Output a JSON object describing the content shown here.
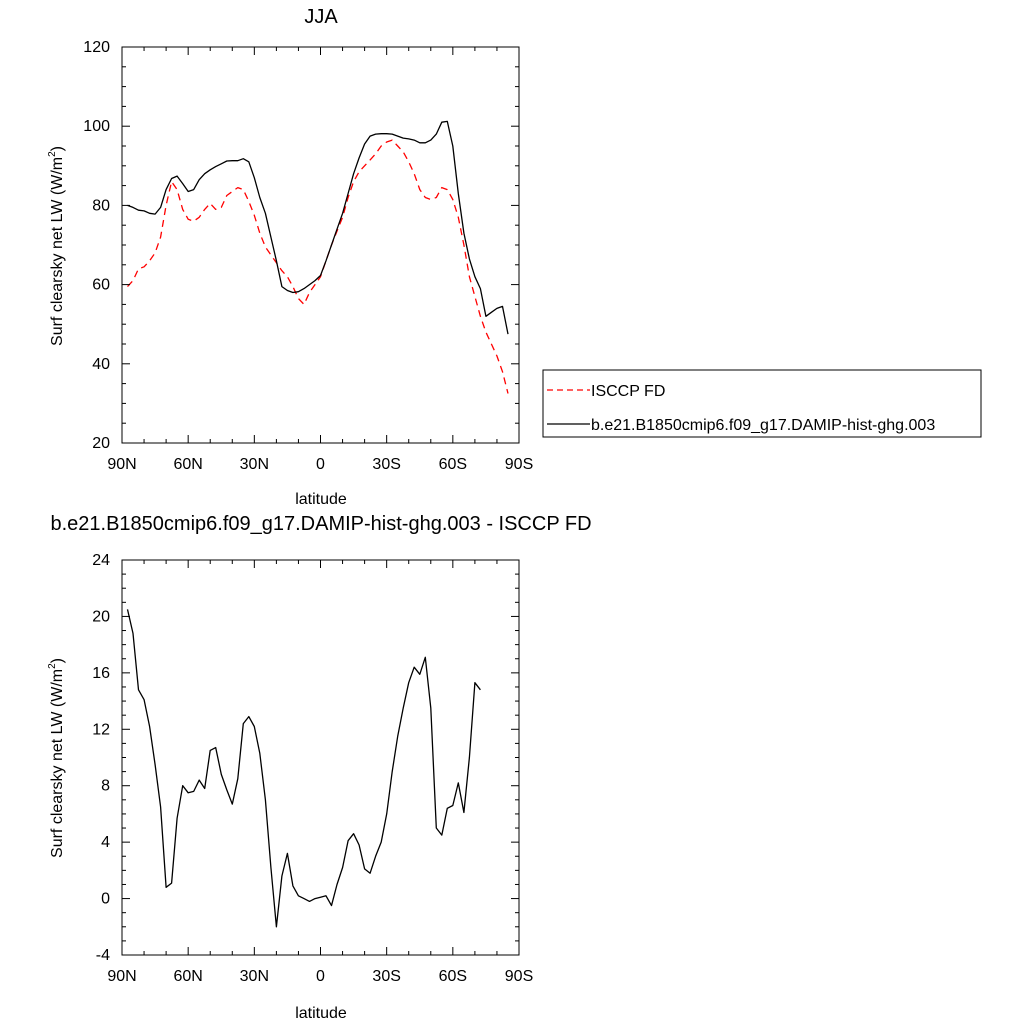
{
  "chart_data": [
    {
      "type": "line",
      "title": "JJA",
      "xlabel": "latitude",
      "ylabel": "Surf clearsky net LW (W/m",
      "ylabel_sup": "2",
      "ylabel_close": ")",
      "xlim": [
        90,
        -90
      ],
      "ylim": [
        20,
        120
      ],
      "x_ticks": [
        90,
        60,
        30,
        0,
        -30,
        -60,
        -90
      ],
      "x_tick_labels": [
        "90N",
        "60N",
        "30N",
        "0",
        "30S",
        "60S",
        "90S"
      ],
      "y_ticks": [
        20,
        40,
        60,
        80,
        100,
        120
      ],
      "y_tick_labels": [
        "20",
        "40",
        "60",
        "80",
        "100",
        "120"
      ],
      "grid": false,
      "legend_position": "right",
      "series": [
        {
          "name": "ISCCP FD",
          "color": "#ff0000",
          "dash": "dashed",
          "points": [
            [
              87.5,
              59.5
            ],
            [
              85,
              61
            ],
            [
              82.5,
              64
            ],
            [
              80,
              64.5
            ],
            [
              77.5,
              66
            ],
            [
              75,
              68
            ],
            [
              72.5,
              72
            ],
            [
              70,
              80
            ],
            [
              67.5,
              86
            ],
            [
              65,
              84
            ],
            [
              62.5,
              79
            ],
            [
              60,
              76.5
            ],
            [
              57.5,
              76
            ],
            [
              55,
              77
            ],
            [
              52.5,
              79
            ],
            [
              50,
              80.5
            ],
            [
              47.5,
              79
            ],
            [
              45,
              79.5
            ],
            [
              42.5,
              82.5
            ],
            [
              40,
              83.5
            ],
            [
              37.5,
              84.5
            ],
            [
              35,
              84
            ],
            [
              32.5,
              81
            ],
            [
              30,
              77.5
            ],
            [
              27.5,
              73
            ],
            [
              25,
              69.5
            ],
            [
              22.5,
              67.5
            ],
            [
              20,
              65.5
            ],
            [
              17.5,
              63.5
            ],
            [
              15,
              62
            ],
            [
              12.5,
              59.5
            ],
            [
              10,
              56.5
            ],
            [
              7.5,
              55
            ],
            [
              5,
              58
            ],
            [
              2.5,
              60
            ],
            [
              0,
              62
            ],
            [
              -2.5,
              66
            ],
            [
              -5,
              70
            ],
            [
              -7.5,
              73.5
            ],
            [
              -10,
              77
            ],
            [
              -12.5,
              82
            ],
            [
              -15,
              86
            ],
            [
              -17.5,
              88.5
            ],
            [
              -20,
              90
            ],
            [
              -22.5,
              91.5
            ],
            [
              -25,
              93
            ],
            [
              -27.5,
              95
            ],
            [
              -30,
              96
            ],
            [
              -32.5,
              96.5
            ],
            [
              -35,
              95
            ],
            [
              -37.5,
              93.5
            ],
            [
              -40,
              91
            ],
            [
              -42.5,
              88
            ],
            [
              -45,
              84
            ],
            [
              -47.5,
              82
            ],
            [
              -50,
              81.5
            ],
            [
              -52.5,
              82
            ],
            [
              -55,
              84.5
            ],
            [
              -57.5,
              84
            ],
            [
              -60,
              81.5
            ],
            [
              -62.5,
              77
            ],
            [
              -65,
              70
            ],
            [
              -67.5,
              62
            ],
            [
              -70,
              57
            ],
            [
              -72.5,
              52
            ],
            [
              -75,
              48
            ],
            [
              -77.5,
              45
            ],
            [
              -80,
              42
            ],
            [
              -82.5,
              38
            ],
            [
              -85,
              32.5
            ]
          ]
        },
        {
          "name": "b.e21.B1850cmip6.f09_g17.DAMIP-hist-ghg.003",
          "color": "#000000",
          "dash": "solid",
          "points": [
            [
              87.5,
              80
            ],
            [
              85,
              79.5
            ],
            [
              82.5,
              78.8
            ],
            [
              80,
              78.6
            ],
            [
              77.5,
              78
            ],
            [
              75,
              77.8
            ],
            [
              72.5,
              79.5
            ],
            [
              70,
              84
            ],
            [
              67.5,
              86.8
            ],
            [
              65,
              87.4
            ],
            [
              62.5,
              85.5
            ],
            [
              60,
              83.5
            ],
            [
              57.5,
              84
            ],
            [
              55,
              86.5
            ],
            [
              52.5,
              88
            ],
            [
              50,
              89
            ],
            [
              47.5,
              89.8
            ],
            [
              45,
              90.5
            ],
            [
              42.5,
              91.2
            ],
            [
              40,
              91.3
            ],
            [
              37.5,
              91.3
            ],
            [
              35,
              91.8
            ],
            [
              32.5,
              91
            ],
            [
              30,
              87
            ],
            [
              27.5,
              82
            ],
            [
              25,
              78
            ],
            [
              22.5,
              72
            ],
            [
              20,
              66
            ],
            [
              17.5,
              59.5
            ],
            [
              15,
              58.5
            ],
            [
              12.5,
              58
            ],
            [
              10,
              58.2
            ],
            [
              7.5,
              59
            ],
            [
              5,
              60
            ],
            [
              2.5,
              61
            ],
            [
              0,
              62.3
            ],
            [
              -2.5,
              66
            ],
            [
              -5,
              70
            ],
            [
              -7.5,
              74
            ],
            [
              -10,
              78
            ],
            [
              -12.5,
              83
            ],
            [
              -15,
              88
            ],
            [
              -17.5,
              92
            ],
            [
              -20,
              95.5
            ],
            [
              -22.5,
              97.5
            ],
            [
              -25,
              98
            ],
            [
              -27.5,
              98.1
            ],
            [
              -30,
              98.1
            ],
            [
              -32.5,
              98
            ],
            [
              -35,
              97.5
            ],
            [
              -37.5,
              97
            ],
            [
              -40,
              96.8
            ],
            [
              -42.5,
              96.5
            ],
            [
              -45,
              95.8
            ],
            [
              -47.5,
              95.8
            ],
            [
              -50,
              96.5
            ],
            [
              -52.5,
              98
            ],
            [
              -55,
              101
            ],
            [
              -57.5,
              101.2
            ],
            [
              -60,
              95
            ],
            [
              -62.5,
              83
            ],
            [
              -65,
              73
            ],
            [
              -67.5,
              66.5
            ],
            [
              -70,
              62
            ],
            [
              -72.5,
              59
            ],
            [
              -75,
              52
            ],
            [
              -77.5,
              53
            ],
            [
              -80,
              54
            ],
            [
              -82.5,
              54.5
            ],
            [
              -85,
              47.5
            ]
          ]
        }
      ]
    },
    {
      "type": "line",
      "title": "b.e21.B1850cmip6.f09_g17.DAMIP-hist-ghg.003 - ISCCP FD",
      "xlabel": "latitude",
      "ylabel": "Surf clearsky net LW (W/m",
      "ylabel_sup": "2",
      "ylabel_close": ")",
      "xlim": [
        90,
        -90
      ],
      "ylim": [
        -4,
        24
      ],
      "x_ticks": [
        90,
        60,
        30,
        0,
        -30,
        -60,
        -90
      ],
      "x_tick_labels": [
        "90N",
        "60N",
        "30N",
        "0",
        "30S",
        "60S",
        "90S"
      ],
      "y_ticks": [
        -4,
        0,
        4,
        8,
        12,
        16,
        20,
        24
      ],
      "y_tick_labels": [
        "-4",
        "0",
        "4",
        "8",
        "12",
        "16",
        "20",
        "24"
      ],
      "grid": false,
      "series": [
        {
          "color": "#000000",
          "dash": "solid",
          "points": [
            [
              87.5,
              20.5
            ],
            [
              85,
              18.8
            ],
            [
              82.5,
              14.8
            ],
            [
              80,
              14.1
            ],
            [
              77.5,
              12.2
            ],
            [
              75,
              9.5
            ],
            [
              72.5,
              6.5
            ],
            [
              70,
              0.8
            ],
            [
              67.5,
              1.1
            ],
            [
              65,
              5.7
            ],
            [
              62.5,
              8
            ],
            [
              60,
              7.5
            ],
            [
              57.5,
              7.6
            ],
            [
              55,
              8.4
            ],
            [
              52.5,
              7.8
            ],
            [
              50,
              10.5
            ],
            [
              47.5,
              10.7
            ],
            [
              45,
              8.8
            ],
            [
              42.5,
              7.7
            ],
            [
              40,
              6.7
            ],
            [
              37.5,
              8.5
            ],
            [
              35,
              12.4
            ],
            [
              32.5,
              12.9
            ],
            [
              30,
              12.2
            ],
            [
              27.5,
              10.3
            ],
            [
              25,
              7
            ],
            [
              22.5,
              2.2
            ],
            [
              20,
              -2
            ],
            [
              17.5,
              1.6
            ],
            [
              15,
              3.2
            ],
            [
              12.5,
              0.9
            ],
            [
              10,
              0.2
            ],
            [
              7.5,
              0
            ],
            [
              5,
              -0.2
            ],
            [
              2.5,
              0
            ],
            [
              0,
              0.1
            ],
            [
              -2.5,
              0.2
            ],
            [
              -5,
              -0.5
            ],
            [
              -7.5,
              1
            ],
            [
              -10,
              2.2
            ],
            [
              -12.5,
              4.1
            ],
            [
              -15,
              4.6
            ],
            [
              -17.5,
              3.8
            ],
            [
              -20,
              2.1
            ],
            [
              -22.5,
              1.8
            ],
            [
              -25,
              3
            ],
            [
              -27.5,
              4
            ],
            [
              -30,
              6
            ],
            [
              -32.5,
              9
            ],
            [
              -35,
              11.5
            ],
            [
              -37.5,
              13.5
            ],
            [
              -40,
              15.3
            ],
            [
              -42.5,
              16.4
            ],
            [
              -45,
              15.9
            ],
            [
              -47.5,
              17.1
            ],
            [
              -50,
              13.5
            ],
            [
              -52.5,
              5
            ],
            [
              -55,
              4.5
            ],
            [
              -57.5,
              6.4
            ],
            [
              -60,
              6.6
            ],
            [
              -62.5,
              8.2
            ],
            [
              -65,
              6.1
            ],
            [
              -67.5,
              10
            ],
            [
              -70,
              15.3
            ],
            [
              -72.5,
              14.8
            ]
          ]
        }
      ]
    }
  ]
}
